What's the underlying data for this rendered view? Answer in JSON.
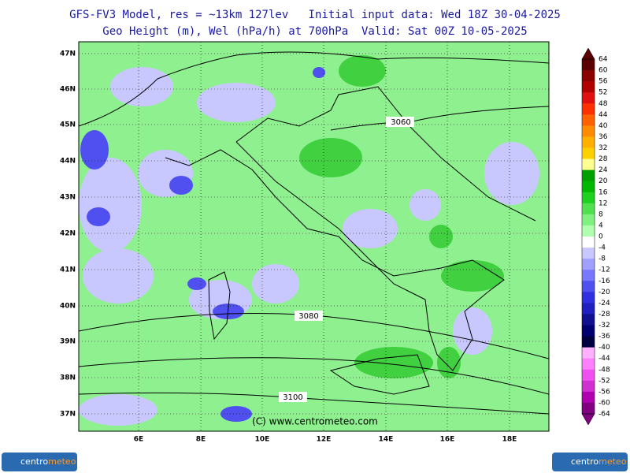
{
  "header": {
    "title": "GFS-FV3 Model, res = ~13km 127lev   Initial input data: Wed 18Z 30-04-2025",
    "subtitle": "Geo Height (m), Wel (hPa/h) at 700hPa  Valid: Sat 00Z 10-05-2025"
  },
  "map": {
    "lat_labels": [
      "47N",
      "46N",
      "45N",
      "44N",
      "43N",
      "42N",
      "41N",
      "40N",
      "39N",
      "38N",
      "37N"
    ],
    "lon_labels": [
      "6E",
      "8E",
      "10E",
      "12E",
      "14E",
      "16E",
      "18E"
    ],
    "contour_labels": [
      "3060",
      "3080",
      "3100"
    ],
    "copyright": "(C) www.centrometeo.com"
  },
  "colorbar": {
    "labels": [
      64,
      60,
      56,
      52,
      48,
      44,
      40,
      36,
      32,
      28,
      24,
      20,
      16,
      12,
      8,
      4,
      0,
      -4,
      -8,
      -12,
      -16,
      -20,
      -24,
      -28,
      -32,
      -36,
      -40,
      -44,
      -48,
      -52,
      -56,
      -60,
      -64
    ],
    "colors": [
      "#5a0000",
      "#8b0000",
      "#b00000",
      "#e01010",
      "#ff3000",
      "#ff6000",
      "#ff8c00",
      "#ffb000",
      "#ffd000",
      "#ffff90",
      "#00a000",
      "#00b800",
      "#20d020",
      "#50e050",
      "#80f080",
      "#b0ffb0",
      "#ffffff",
      "#c8c8ff",
      "#a0a0ff",
      "#7878ff",
      "#5050f0",
      "#3030e0",
      "#2020c0",
      "#101090",
      "#000070",
      "#000040",
      "#ffb0ff",
      "#ff80ff",
      "#f050f0",
      "#d030d0",
      "#b000b0",
      "#800080"
    ]
  },
  "logo": {
    "part1": "centro",
    "part2": "meteo"
  }
}
